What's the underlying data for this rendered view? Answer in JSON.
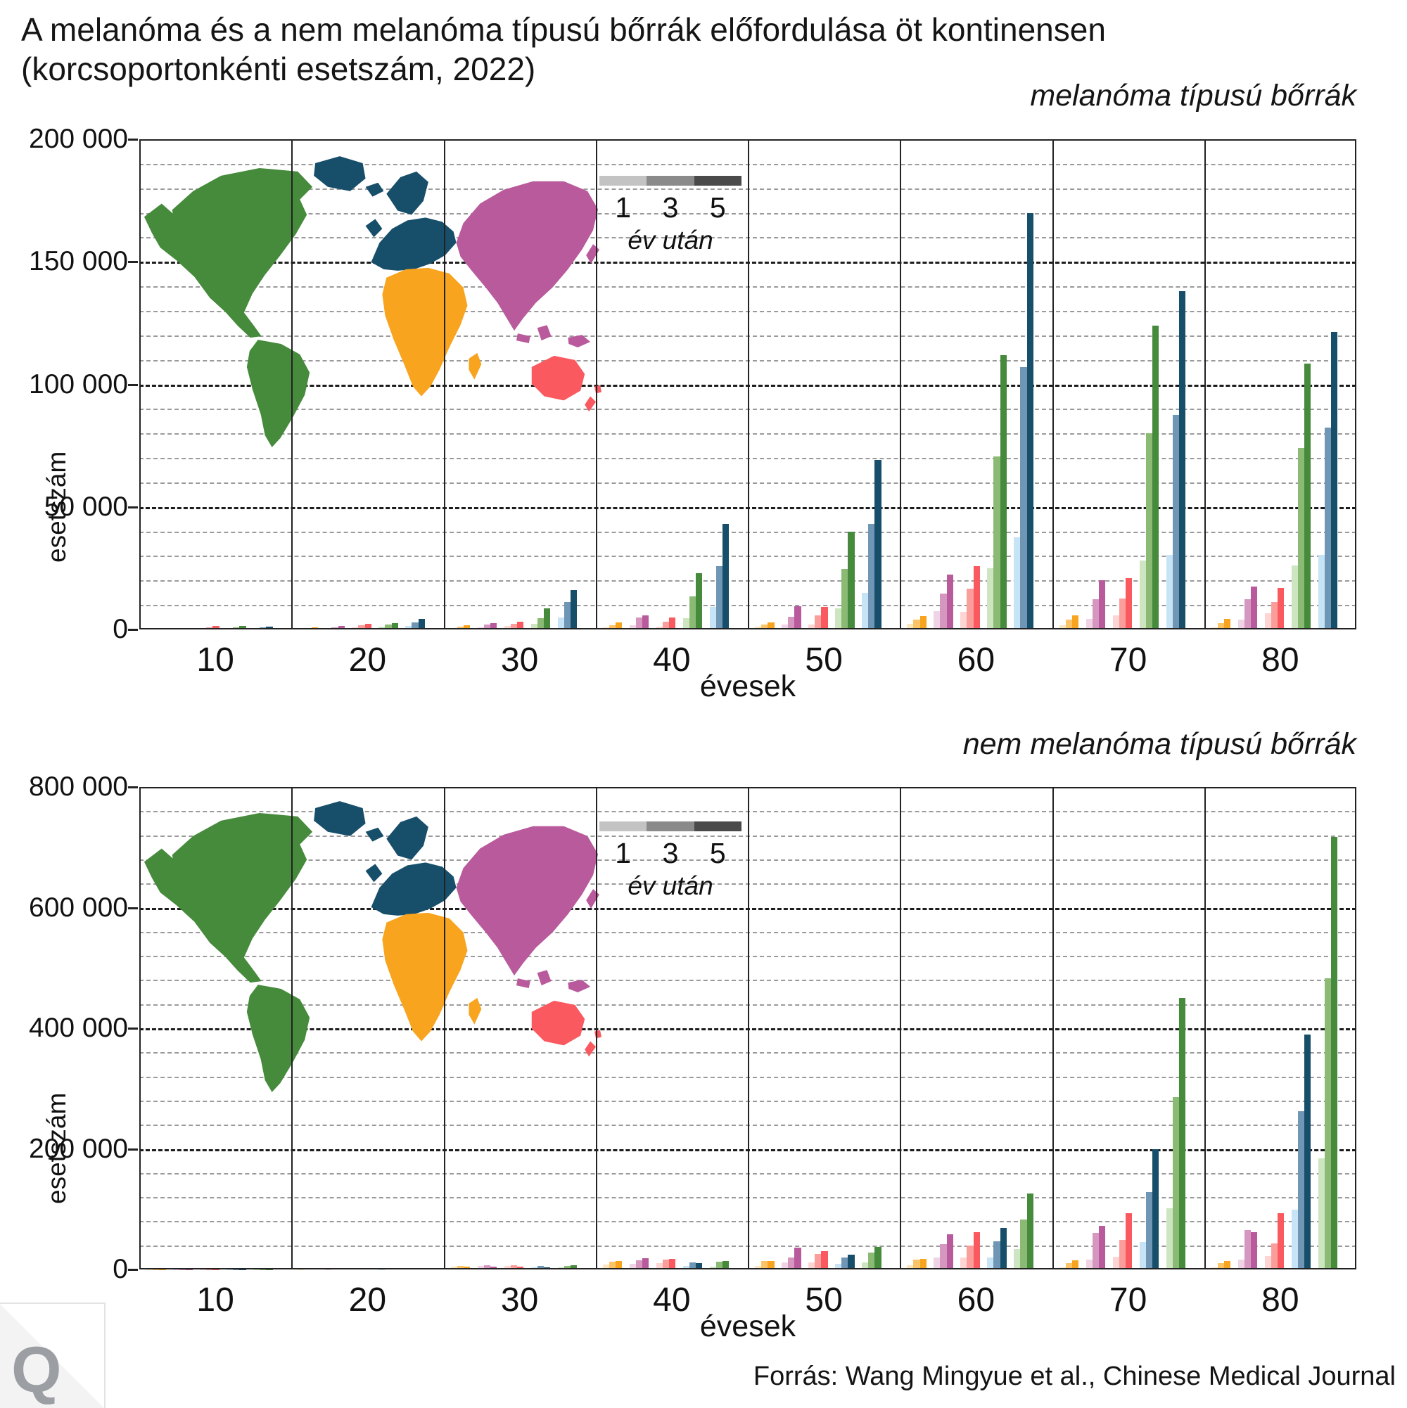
{
  "title": {
    "line1": "A melanóma és a nem melanóma típusú bőrrák előfordulása öt kontinensen",
    "line2": "(korcsoportonkénti esetszám, 2022)"
  },
  "source": "Forrás: Wang Mingyue et al., Chinese Medical Journal",
  "logo": {
    "letter": "Q"
  },
  "legend": {
    "tick_labels": [
      "1",
      "3",
      "5"
    ],
    "caption": "év után",
    "swatches": [
      "#c3c3c3",
      "#8a8a8a",
      "#4a4a4a"
    ]
  },
  "continents": {
    "africa": {
      "label": "Afrika",
      "color": "#f8a41e",
      "shades": [
        "#fce6bc",
        "#fbc469",
        "#f8a41e"
      ]
    },
    "asia": {
      "label": "Ázsia",
      "color": "#b85a9b",
      "shades": [
        "#f0d3e5",
        "#d596c0",
        "#b85a9b"
      ]
    },
    "oceania": {
      "label": "Óceánia",
      "color": "#f9595f",
      "shades": [
        "#fdd5d3",
        "#fb9e9b",
        "#f9595f"
      ]
    },
    "americas": {
      "label": "Amerika",
      "color": "#468b3c",
      "shades": [
        "#cde6c1",
        "#8aba74",
        "#468b3c"
      ]
    },
    "europe": {
      "label": "Európa",
      "color": "#174f6b",
      "shades": [
        "#c7e3f6",
        "#7096b6",
        "#174f6b"
      ]
    }
  },
  "chart_data": [
    {
      "type": "bar",
      "title": "melanóma típusú bőrrák",
      "xlabel": "évesek",
      "ylabel": "esetszám",
      "categories": [
        "10",
        "20",
        "30",
        "40",
        "50",
        "60",
        "70",
        "80"
      ],
      "ymax": 200000,
      "major_step": 50000,
      "minor_step": 10000,
      "ytick_values": [
        0,
        50000,
        100000,
        150000,
        200000
      ],
      "ytick_labels": [
        "0",
        "50 000",
        "100 000",
        "150 000",
        "200 000"
      ],
      "years_after": [
        1,
        3,
        5
      ],
      "group_order": [
        "africa",
        "asia",
        "oceania",
        "americas",
        "europe"
      ],
      "series": [
        {
          "key": "africa",
          "name": "Afrika",
          "values": [
            [
              200,
              300,
              500
            ],
            [
              400,
              700,
              1000
            ],
            [
              700,
              1200,
              1700
            ],
            [
              900,
              1800,
              2800
            ],
            [
              1200,
              2000,
              2900
            ],
            [
              2200,
              3900,
              5500
            ],
            [
              1700,
              4000,
              5800
            ],
            [
              900,
              2700,
              4400
            ]
          ]
        },
        {
          "key": "asia",
          "name": "Ázsia",
          "values": [
            [
              200,
              400,
              600
            ],
            [
              500,
              900,
              1300
            ],
            [
              1000,
              1900,
              2700
            ],
            [
              1600,
              4800,
              5700
            ],
            [
              2000,
              5300,
              9400
            ],
            [
              7500,
              14600,
              22400
            ],
            [
              4400,
              12400,
              20100
            ],
            [
              4100,
              12200,
              17500
            ]
          ]
        },
        {
          "key": "oceania",
          "name": "Óceánia",
          "values": [
            [
              300,
              800,
              1300
            ],
            [
              900,
              1700,
              2300
            ],
            [
              1400,
              2400,
              3300
            ],
            [
              1200,
              3300,
              4900
            ],
            [
              2000,
              5600,
              9100
            ],
            [
              7100,
              16600,
              25700
            ],
            [
              5600,
              12700,
              20900
            ],
            [
              6500,
              11200,
              16800
            ]
          ]
        },
        {
          "key": "americas",
          "name": "Amerika",
          "values": [
            [
              500,
              1000,
              1500
            ],
            [
              1200,
              2000,
              2600
            ],
            [
              2200,
              4600,
              8500
            ],
            [
              4600,
              13600,
              23000
            ],
            [
              8600,
              24800,
              40000
            ],
            [
              24900,
              70600,
              112000
            ],
            [
              28000,
              80000,
              124000
            ],
            [
              26000,
              74000,
              108500
            ]
          ]
        },
        {
          "key": "europe",
          "name": "Európa",
          "values": [
            [
              400,
              800,
              1200
            ],
            [
              1500,
              2900,
              4300
            ],
            [
              4900,
              11200,
              16000
            ],
            [
              9300,
              25700,
              43000
            ],
            [
              14900,
              43000,
              69200
            ],
            [
              37500,
              107000,
              170000
            ],
            [
              30400,
              87600,
              138100
            ],
            [
              30400,
              82500,
              121500
            ]
          ]
        }
      ]
    },
    {
      "type": "bar",
      "title": "nem melanóma típusú bőrrák",
      "xlabel": "évesek",
      "ylabel": "esetszám",
      "categories": [
        "10",
        "20",
        "30",
        "40",
        "50",
        "60",
        "70",
        "80"
      ],
      "ymax": 800000,
      "major_step": 200000,
      "minor_step": 40000,
      "ytick_values": [
        0,
        200000,
        400000,
        600000,
        800000
      ],
      "ytick_labels": [
        "0",
        "200 000",
        "400 000",
        "600 000",
        "800 000"
      ],
      "years_after": [
        1,
        3,
        5
      ],
      "group_order": [
        "africa",
        "asia",
        "oceania",
        "europe",
        "americas"
      ],
      "series": [
        {
          "key": "africa",
          "name": "Afrika",
          "values": [
            [
              100,
              200,
              300
            ],
            [
              600,
              1300,
              1900
            ],
            [
              4800,
              5600,
              5100
            ],
            [
              8500,
              13000,
              13700
            ],
            [
              6300,
              13700,
              14100
            ],
            [
              7400,
              15900,
              17800
            ],
            [
              3800,
              10400,
              15400
            ],
            [
              3800,
              10900,
              14200
            ]
          ]
        },
        {
          "key": "asia",
          "name": "Ázsia",
          "values": [
            [
              200,
              300,
              400
            ],
            [
              500,
              1100,
              1500
            ],
            [
              6000,
              7100,
              4500
            ],
            [
              9200,
              15500,
              18100
            ],
            [
              11100,
              20400,
              35900
            ],
            [
              19600,
              41800,
              58500
            ],
            [
              16700,
              60100,
              72600
            ],
            [
              16700,
              65500,
              61400
            ]
          ]
        },
        {
          "key": "oceania",
          "name": "Óceánia",
          "values": [
            [
              100,
              300,
              400
            ],
            [
              800,
              1600,
              2200
            ],
            [
              6000,
              6700,
              5200
            ],
            [
              10000,
              15900,
              17400
            ],
            [
              11100,
              25900,
              30300
            ],
            [
              19600,
              39600,
              61800
            ],
            [
              20500,
              48800,
              93500
            ],
            [
              22500,
              43400,
              93500
            ]
          ]
        },
        {
          "key": "europe",
          "name": "Európa",
          "values": [
            [
              100,
              200,
              300
            ],
            [
              300,
              700,
              1000
            ],
            [
              3000,
              6400,
              3700
            ],
            [
              6000,
              12200,
              10200
            ],
            [
              9200,
              19600,
              24000
            ],
            [
              20400,
              46300,
              68500
            ],
            [
              45500,
              128200,
              200000
            ],
            [
              98900,
              262600,
              390000
            ]
          ]
        },
        {
          "key": "americas",
          "name": "Amerika",
          "values": [
            [
              200,
              400,
              500
            ],
            [
              900,
              1900,
              2500
            ],
            [
              3400,
              6000,
              7500
            ],
            [
              4400,
              13000,
              14400
            ],
            [
              12200,
              27800,
              37700
            ],
            [
              33300,
              82500,
              125800
            ],
            [
              101000,
              285600,
              450500
            ],
            [
              183700,
              483000,
              717000
            ]
          ]
        }
      ]
    }
  ]
}
